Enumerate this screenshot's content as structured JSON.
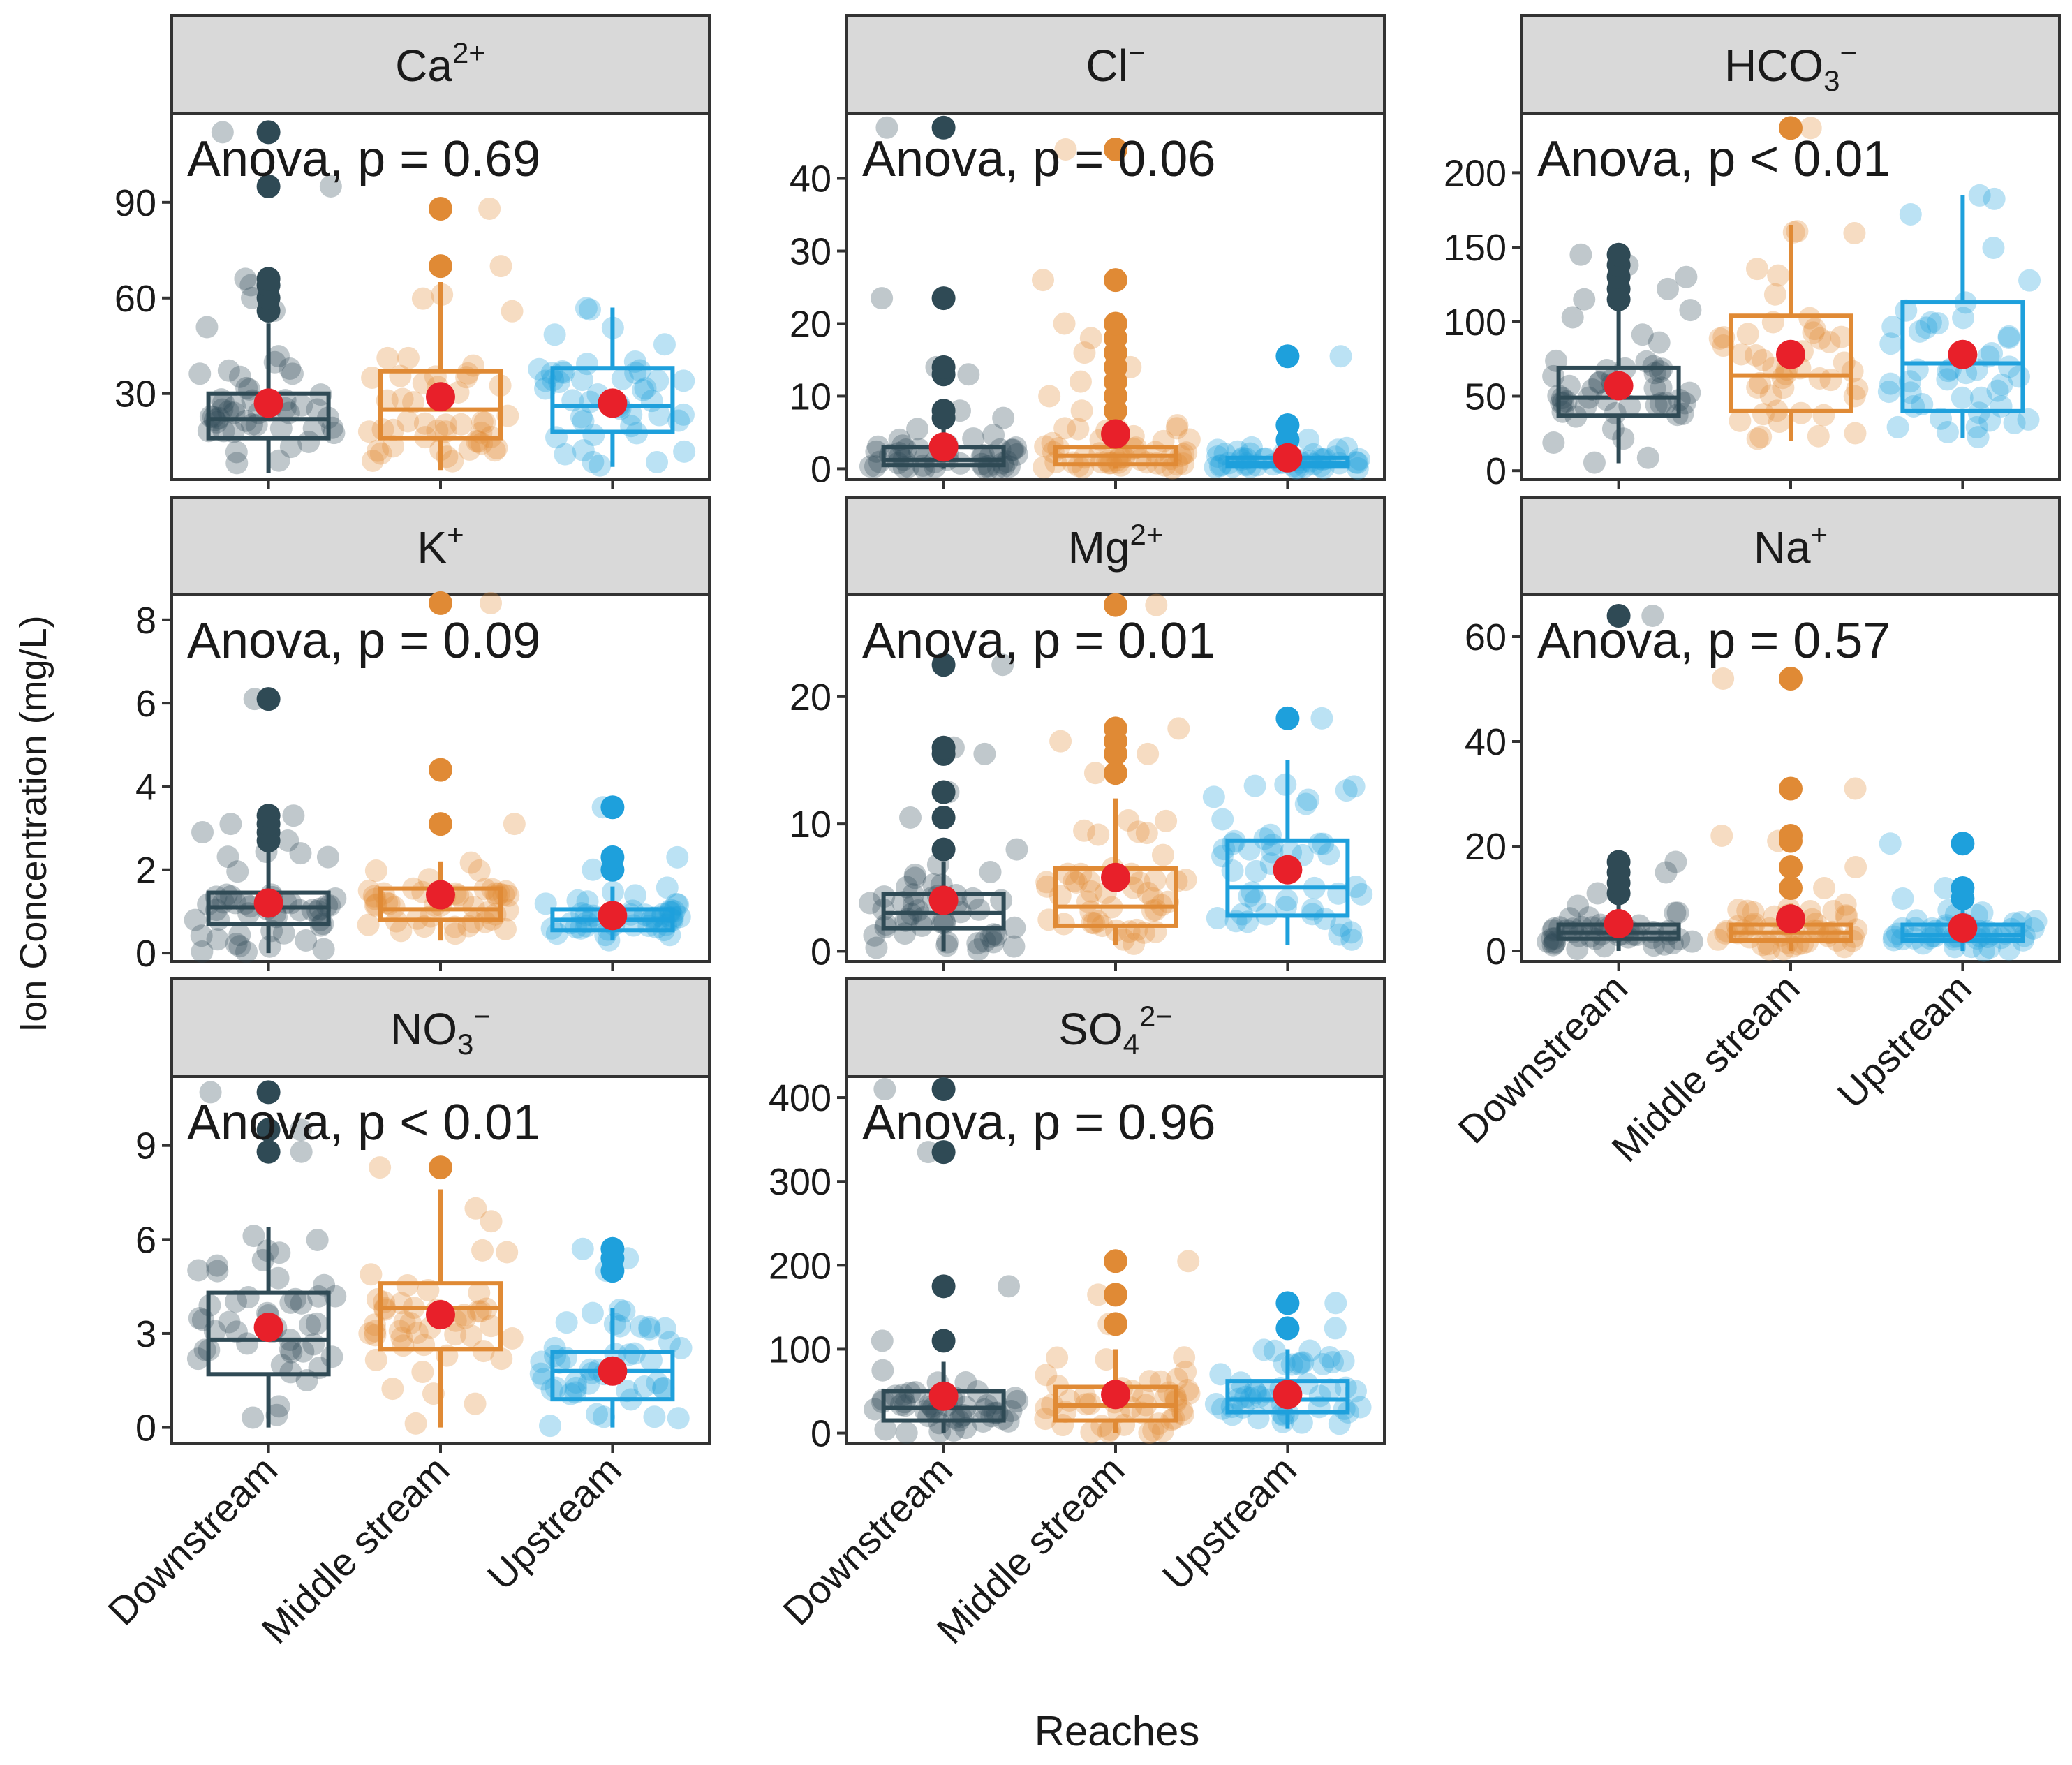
{
  "figure": {
    "ylabel": "Ion Concentration (mg/L)",
    "xlabel": "Reaches",
    "colors": {
      "Downstream": "#2f4a55",
      "Middle stream": "#e08a35",
      "Upstream": "#1ea0dc",
      "mean": "#e8202a",
      "strip_bg": "#d9d9d9",
      "frame": "#333333"
    }
  },
  "chart_data": [
    {
      "type": "box",
      "panel": 1,
      "ion": {
        "base": "Ca",
        "sub": "",
        "sup": "2+"
      },
      "annotation": "Anova, p = 0.69",
      "categories": [
        "Downstream",
        "Middle stream",
        "Upstream"
      ],
      "ylim": [
        3,
        118
      ],
      "yticks": [
        30,
        60,
        90
      ],
      "box_stats": [
        {
          "q1": 16,
          "median": 22,
          "q3": 30,
          "whisker_low": 5,
          "whisker_high": 52,
          "mean": 27,
          "outliers": [
            56,
            60,
            64,
            66,
            95,
            112
          ]
        },
        {
          "q1": 16,
          "median": 25,
          "q3": 37,
          "whisker_low": 6,
          "whisker_high": 65,
          "mean": 29,
          "outliers": [
            70,
            88
          ]
        },
        {
          "q1": 18,
          "median": 26,
          "q3": 38,
          "whisker_low": 7,
          "whisker_high": 57,
          "mean": 27,
          "outliers": []
        }
      ]
    },
    {
      "type": "box",
      "panel": 2,
      "ion": {
        "base": "Cl",
        "sub": "",
        "sup": "−"
      },
      "annotation": "Anova, p = 0.06",
      "categories": [
        "Downstream",
        "Middle stream",
        "Upstream"
      ],
      "ylim": [
        -1.5,
        49
      ],
      "yticks": [
        0,
        10,
        20,
        30,
        40
      ],
      "box_stats": [
        {
          "q1": 0.5,
          "median": 1.2,
          "q3": 3,
          "whisker_low": 0,
          "whisker_high": 6,
          "mean": 3,
          "outliers": [
            7,
            8,
            13,
            14,
            23.5,
            47
          ]
        },
        {
          "q1": 0.6,
          "median": 1.8,
          "q3": 3,
          "whisker_low": 0,
          "whisker_high": 6,
          "mean": 4.8,
          "outliers": [
            8,
            10,
            12,
            14,
            16,
            18,
            20,
            26,
            44
          ]
        },
        {
          "q1": 0.3,
          "median": 0.8,
          "q3": 1.5,
          "whisker_low": 0,
          "whisker_high": 3,
          "mean": 1.5,
          "outliers": [
            4,
            6,
            15.5
          ]
        }
      ]
    },
    {
      "type": "box",
      "panel": 3,
      "ion": {
        "base": "HCO",
        "sub": "3",
        "sup": "−"
      },
      "annotation": "Anova, p < 0.01",
      "categories": [
        "Downstream",
        "Middle stream",
        "Upstream"
      ],
      "ylim": [
        -6,
        240
      ],
      "yticks": [
        0,
        50,
        100,
        150,
        200
      ],
      "box_stats": [
        {
          "q1": 37,
          "median": 49,
          "q3": 69,
          "whisker_low": 5,
          "whisker_high": 108,
          "mean": 57,
          "outliers": [
            115,
            122,
            130,
            138,
            145
          ]
        },
        {
          "q1": 40,
          "median": 64,
          "q3": 104,
          "whisker_low": 20,
          "whisker_high": 165,
          "mean": 78,
          "outliers": [
            230
          ]
        },
        {
          "q1": 40,
          "median": 72,
          "q3": 113,
          "whisker_low": 22,
          "whisker_high": 185,
          "mean": 78,
          "outliers": []
        }
      ]
    },
    {
      "type": "box",
      "panel": 4,
      "ion": {
        "base": "K",
        "sub": "",
        "sup": "+"
      },
      "annotation": "Anova, p = 0.09",
      "categories": [
        "Downstream",
        "Middle stream",
        "Upstream"
      ],
      "ylim": [
        -0.2,
        8.6
      ],
      "yticks": [
        0,
        2,
        4,
        6,
        8
      ],
      "box_stats": [
        {
          "q1": 0.7,
          "median": 1.1,
          "q3": 1.45,
          "whisker_low": 0,
          "whisker_high": 2.5,
          "mean": 1.2,
          "outliers": [
            2.7,
            2.9,
            3.1,
            3.3,
            6.1
          ]
        },
        {
          "q1": 0.8,
          "median": 1.05,
          "q3": 1.55,
          "whisker_low": 0.3,
          "whisker_high": 2.2,
          "mean": 1.4,
          "outliers": [
            3.1,
            4.4,
            8.4
          ]
        },
        {
          "q1": 0.55,
          "median": 0.8,
          "q3": 1.05,
          "whisker_low": 0.3,
          "whisker_high": 1.6,
          "mean": 0.9,
          "outliers": [
            2.0,
            2.3,
            3.5
          ]
        }
      ]
    },
    {
      "type": "box",
      "panel": 5,
      "ion": {
        "base": "Mg",
        "sub": "",
        "sup": "2+"
      },
      "annotation": "Anova, p = 0.01",
      "categories": [
        "Downstream",
        "Middle stream",
        "Upstream"
      ],
      "ylim": [
        -0.8,
        28
      ],
      "yticks": [
        0,
        10,
        20
      ],
      "box_stats": [
        {
          "q1": 1.8,
          "median": 3.0,
          "q3": 4.5,
          "whisker_low": 0,
          "whisker_high": 7,
          "mean": 4.0,
          "outliers": [
            8,
            10.5,
            12.5,
            15.5,
            16,
            22.5
          ]
        },
        {
          "q1": 2.0,
          "median": 3.5,
          "q3": 6.5,
          "whisker_low": 0.5,
          "whisker_high": 12,
          "mean": 5.8,
          "outliers": [
            14,
            15.5,
            16.5,
            17.5,
            27.2
          ]
        },
        {
          "q1": 2.8,
          "median": 5.0,
          "q3": 8.7,
          "whisker_low": 0.5,
          "whisker_high": 15,
          "mean": 6.4,
          "outliers": [
            18.3
          ]
        }
      ]
    },
    {
      "type": "box",
      "panel": 6,
      "ion": {
        "base": "Na",
        "sub": "",
        "sup": "+"
      },
      "annotation": "Anova, p = 0.57",
      "categories": [
        "Downstream",
        "Middle stream",
        "Upstream"
      ],
      "ylim": [
        -2,
        68
      ],
      "yticks": [
        0,
        20,
        40,
        60
      ],
      "box_stats": [
        {
          "q1": 2.3,
          "median": 3.5,
          "q3": 5,
          "whisker_low": 0,
          "whisker_high": 9,
          "mean": 5.2,
          "outliers": [
            11,
            13,
            15,
            17,
            64
          ]
        },
        {
          "q1": 2.0,
          "median": 3.5,
          "q3": 5,
          "whisker_low": 0,
          "whisker_high": 9,
          "mean": 6.1,
          "outliers": [
            12,
            16,
            21,
            22,
            31,
            52
          ]
        },
        {
          "q1": 2.0,
          "median": 3.0,
          "q3": 5,
          "whisker_low": 0,
          "whisker_high": 8,
          "mean": 4.4,
          "outliers": [
            10,
            12,
            20.5
          ]
        }
      ]
    },
    {
      "type": "box",
      "panel": 7,
      "ion": {
        "base": "NO",
        "sub": "3",
        "sup": "−"
      },
      "annotation": "Anova, p < 0.01",
      "categories": [
        "Downstream",
        "Middle stream",
        "Upstream"
      ],
      "ylim": [
        -0.5,
        11.2
      ],
      "yticks": [
        0,
        3,
        6,
        9
      ],
      "box_stats": [
        {
          "q1": 1.7,
          "median": 2.8,
          "q3": 4.3,
          "whisker_low": 0,
          "whisker_high": 6.4,
          "mean": 3.2,
          "outliers": [
            8.8,
            9.5,
            10.7
          ]
        },
        {
          "q1": 2.5,
          "median": 3.8,
          "q3": 4.6,
          "whisker_low": 0,
          "whisker_high": 7.6,
          "mean": 3.6,
          "outliers": [
            8.3
          ]
        },
        {
          "q1": 0.9,
          "median": 1.8,
          "q3": 2.4,
          "whisker_low": 0,
          "whisker_high": 3.8,
          "mean": 1.8,
          "outliers": [
            5.0,
            5.4,
            5.7
          ]
        }
      ]
    },
    {
      "type": "box",
      "panel": 8,
      "ion": {
        "base": "SO",
        "sub": "4",
        "sup": "2−"
      },
      "annotation": "Anova, p = 0.96",
      "categories": [
        "Downstream",
        "Middle stream",
        "Upstream"
      ],
      "ylim": [
        -12,
        425
      ],
      "yticks": [
        0,
        100,
        200,
        300,
        400
      ],
      "box_stats": [
        {
          "q1": 15,
          "median": 30,
          "q3": 50,
          "whisker_low": 0,
          "whisker_high": 85,
          "mean": 44,
          "outliers": [
            110,
            175,
            335,
            410
          ]
        },
        {
          "q1": 15,
          "median": 33,
          "q3": 55,
          "whisker_low": 0,
          "whisker_high": 100,
          "mean": 46,
          "outliers": [
            130,
            165,
            205
          ]
        },
        {
          "q1": 25,
          "median": 40,
          "q3": 62,
          "whisker_low": 5,
          "whisker_high": 100,
          "mean": 46,
          "outliers": [
            125,
            155
          ]
        }
      ]
    }
  ]
}
